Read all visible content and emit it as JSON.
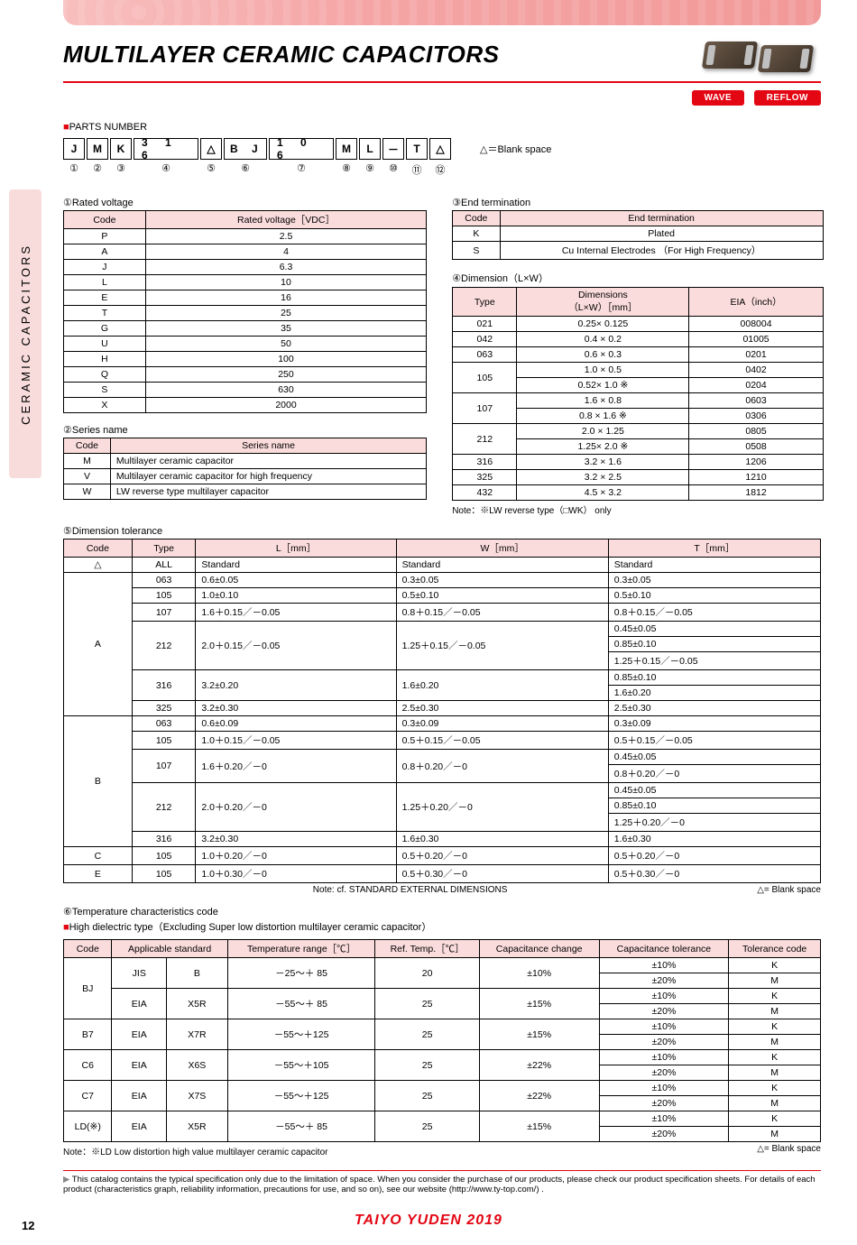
{
  "title": "MULTILAYER CERAMIC CAPACITORS",
  "badges": [
    "WAVE",
    "REFLOW"
  ],
  "sidebar": "CERAMIC CAPACITORS",
  "parts_number_label": "PARTS NUMBER",
  "blank_note": "△＝Blank space",
  "pn_boxes": [
    {
      "val": "J",
      "num": "①",
      "w": 1
    },
    {
      "val": "M",
      "num": "②",
      "w": 1
    },
    {
      "val": "K",
      "num": "③",
      "w": 1
    },
    {
      "val": "3 1 6",
      "num": "④",
      "w": 3
    },
    {
      "val": "△",
      "num": "⑤",
      "w": 1
    },
    {
      "val": "B J",
      "num": "⑥",
      "w": 2
    },
    {
      "val": "1 0 6",
      "num": "⑦",
      "w": 3
    },
    {
      "val": "M",
      "num": "⑧",
      "w": 1
    },
    {
      "val": "L",
      "num": "⑨",
      "w": 1
    },
    {
      "val": "－",
      "num": "⑩",
      "w": 1
    },
    {
      "val": "T",
      "num": "⑪",
      "w": 1
    },
    {
      "val": "△",
      "num": "⑫",
      "w": 1
    }
  ],
  "t1": {
    "label": "①Rated voltage",
    "headers": [
      "Code",
      "Rated voltage［VDC］"
    ],
    "rows": [
      [
        "P",
        "2.5"
      ],
      [
        "A",
        "4"
      ],
      [
        "J",
        "6.3"
      ],
      [
        "L",
        "10"
      ],
      [
        "E",
        "16"
      ],
      [
        "T",
        "25"
      ],
      [
        "G",
        "35"
      ],
      [
        "U",
        "50"
      ],
      [
        "H",
        "100"
      ],
      [
        "Q",
        "250"
      ],
      [
        "S",
        "630"
      ],
      [
        "X",
        "2000"
      ]
    ]
  },
  "t2": {
    "label": "②Series name",
    "headers": [
      "Code",
      "Series name"
    ],
    "rows": [
      [
        "M",
        "Multilayer ceramic capacitor"
      ],
      [
        "V",
        "Multilayer ceramic capacitor for high frequency"
      ],
      [
        "W",
        "LW reverse type multilayer capacitor"
      ]
    ]
  },
  "t3": {
    "label": "③End termination",
    "headers": [
      "Code",
      "End termination"
    ],
    "rows": [
      [
        "K",
        "Plated"
      ],
      [
        "S",
        "Cu Internal Electrodes （For High Frequency）"
      ]
    ]
  },
  "t4": {
    "label": "④Dimension（L×W）",
    "headers": [
      "Type",
      "Dimensions\n（L×W）［mm］",
      "EIA（inch）"
    ],
    "rows": [
      [
        "021",
        "0.25× 0.125",
        "008004"
      ],
      [
        "042",
        "0.4 × 0.2",
        "01005"
      ],
      [
        "063",
        "0.6 × 0.3",
        "0201"
      ],
      [
        "105",
        "1.0 × 0.5",
        "0402"
      ],
      [
        "",
        "0.52× 1.0 ※",
        "0204"
      ],
      [
        "107",
        "1.6 × 0.8",
        "0603"
      ],
      [
        "",
        "0.8 × 1.6 ※",
        "0306"
      ],
      [
        "212",
        "2.0 × 1.25",
        "0805"
      ],
      [
        "",
        "1.25× 2.0 ※",
        "0508"
      ],
      [
        "316",
        "3.2 × 1.6",
        "1206"
      ],
      [
        "325",
        "3.2 × 2.5",
        "1210"
      ],
      [
        "432",
        "4.5 × 3.2",
        "1812"
      ]
    ],
    "note": "Note：※LW reverse type（□WK） only"
  },
  "t5": {
    "label": "⑤Dimension tolerance",
    "headers": [
      "Code",
      "Type",
      "L［mm］",
      "W［mm］",
      "T［mm］"
    ],
    "note_bottom_left": "Note: cf. STANDARD EXTERNAL DIMENSIONS",
    "note_bottom_right": "△= Blank space",
    "rows": [
      {
        "code": "△",
        "type": "ALL",
        "l": "Standard",
        "w": "Standard",
        "t": "Standard"
      },
      {
        "code": "A",
        "span": 8,
        "sub": [
          {
            "type": "063",
            "l": "0.6±0.05",
            "w": "0.3±0.05",
            "t": "0.3±0.05"
          },
          {
            "type": "105",
            "l": "1.0±0.10",
            "w": "0.5±0.10",
            "t": "0.5±0.10"
          },
          {
            "type": "107",
            "l": "1.6＋0.15／－0.05",
            "w": "0.8＋0.15／－0.05",
            "t": "0.8＋0.15／－0.05"
          },
          {
            "type": "212",
            "tspan": 3,
            "l": "2.0＋0.15／－0.05",
            "w": "1.25＋0.15／－0.05",
            "t": [
              "0.45±0.05",
              "0.85±0.10",
              "1.25＋0.15／－0.05"
            ]
          },
          {
            "type": "316",
            "tspan": 2,
            "l": "3.2±0.20",
            "w": "1.6±0.20",
            "t": [
              "0.85±0.10",
              "1.6±0.20"
            ]
          },
          {
            "type": "325",
            "l": "3.2±0.30",
            "w": "2.5±0.30",
            "t": "2.5±0.30"
          }
        ]
      },
      {
        "code": "B",
        "span": 8,
        "sub": [
          {
            "type": "063",
            "l": "0.6±0.09",
            "w": "0.3±0.09",
            "t": "0.3±0.09"
          },
          {
            "type": "105",
            "l": "1.0＋0.15／－0.05",
            "w": "0.5＋0.15／－0.05",
            "t": "0.5＋0.15／－0.05"
          },
          {
            "type": "107",
            "tspan": 2,
            "l": "1.6＋0.20／－0",
            "w": "0.8＋0.20／－0",
            "t": [
              "0.45±0.05",
              "0.8＋0.20／－0"
            ]
          },
          {
            "type": "212",
            "tspan": 3,
            "l": "2.0＋0.20／－0",
            "w": "1.25＋0.20／－0",
            "t": [
              "0.45±0.05",
              "0.85±0.10",
              "1.25＋0.20／－0"
            ]
          },
          {
            "type": "316",
            "l": "3.2±0.30",
            "w": "1.6±0.30",
            "t": "1.6±0.30"
          }
        ]
      },
      {
        "code": "C",
        "type": "105",
        "l": "1.0＋0.20／－0",
        "w": "0.5＋0.20／－0",
        "t": "0.5＋0.20／－0"
      },
      {
        "code": "E",
        "type": "105",
        "l": "1.0＋0.30／－0",
        "w": "0.5＋0.30／－0",
        "t": "0.5＋0.30／－0"
      }
    ]
  },
  "t6": {
    "label": "⑥Temperature characteristics code",
    "sublabel": "High dielectric type（Excluding Super low distortion multilayer ceramic capacitor）",
    "headers": [
      "Code",
      "Applicable standard",
      "Temperature range［℃］",
      "Ref. Temp.［℃］",
      "Capacitance change",
      "Capacitance tolerance",
      "Tolerance code"
    ],
    "note": "Note：※LD Low distortion high value multilayer ceramic capacitor",
    "note_right": "△= Blank space",
    "rows": [
      {
        "code": "BJ",
        "std": [
          [
            "JIS",
            "B"
          ],
          [
            "EIA",
            "X5R"
          ]
        ],
        "temp": [
          "－25～＋ 85",
          "－55～＋ 85"
        ],
        "ref": [
          "20",
          "25"
        ],
        "change": [
          "±10%",
          "±15%"
        ],
        "tol": [
          [
            "±10%",
            "K"
          ],
          [
            "±20%",
            "M"
          ],
          [
            "±10%",
            "K"
          ],
          [
            "±20%",
            "M"
          ]
        ]
      },
      {
        "code": "B7",
        "std": [
          [
            "EIA",
            "X7R"
          ]
        ],
        "temp": [
          "－55～＋125"
        ],
        "ref": [
          "25"
        ],
        "change": [
          "±15%"
        ],
        "tol": [
          [
            "±10%",
            "K"
          ],
          [
            "±20%",
            "M"
          ]
        ]
      },
      {
        "code": "C6",
        "std": [
          [
            "EIA",
            "X6S"
          ]
        ],
        "temp": [
          "－55～＋105"
        ],
        "ref": [
          "25"
        ],
        "change": [
          "±22%"
        ],
        "tol": [
          [
            "±10%",
            "K"
          ],
          [
            "±20%",
            "M"
          ]
        ]
      },
      {
        "code": "C7",
        "std": [
          [
            "EIA",
            "X7S"
          ]
        ],
        "temp": [
          "－55～＋125"
        ],
        "ref": [
          "25"
        ],
        "change": [
          "±22%"
        ],
        "tol": [
          [
            "±10%",
            "K"
          ],
          [
            "±20%",
            "M"
          ]
        ]
      },
      {
        "code": "LD(※)",
        "std": [
          [
            "EIA",
            "X5R"
          ]
        ],
        "temp": [
          "－55～＋ 85"
        ],
        "ref": [
          "25"
        ],
        "change": [
          "±15%"
        ],
        "tol": [
          [
            "±10%",
            "K"
          ],
          [
            "±20%",
            "M"
          ]
        ]
      }
    ]
  },
  "footer": "This catalog contains the typical specification only due to the limitation of space.  When you consider the purchase of our products, please check our product specification sheets.  For details of each product (characteristics graph, reliability information, precautions for use, and so on), see our website (http://www.ty-top.com/) .",
  "brand": "TAIYO YUDEN  2019",
  "pagenum": "12"
}
